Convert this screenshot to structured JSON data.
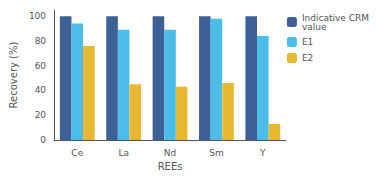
{
  "chart_data": {
    "type": "bar",
    "categories": [
      "Ce",
      "La",
      "Nd",
      "Sm",
      "Y"
    ],
    "series": [
      {
        "name": "Indicative CRM\nvalue",
        "color": "#3d6096",
        "values": [
          100,
          100,
          100,
          100,
          100
        ]
      },
      {
        "name": "E1",
        "color": "#4bbde8",
        "values": [
          94,
          89,
          89,
          98,
          84
        ]
      },
      {
        "name": "E2",
        "color": "#e8b830",
        "values": [
          76,
          45,
          43,
          46,
          13
        ]
      }
    ],
    "xlabel": "REEs",
    "ylabel": "Recovery (%)",
    "ylim": [
      0,
      105
    ],
    "yticks": [
      0,
      20,
      40,
      60,
      80,
      100
    ],
    "grid": false,
    "legend": "upper right"
  }
}
